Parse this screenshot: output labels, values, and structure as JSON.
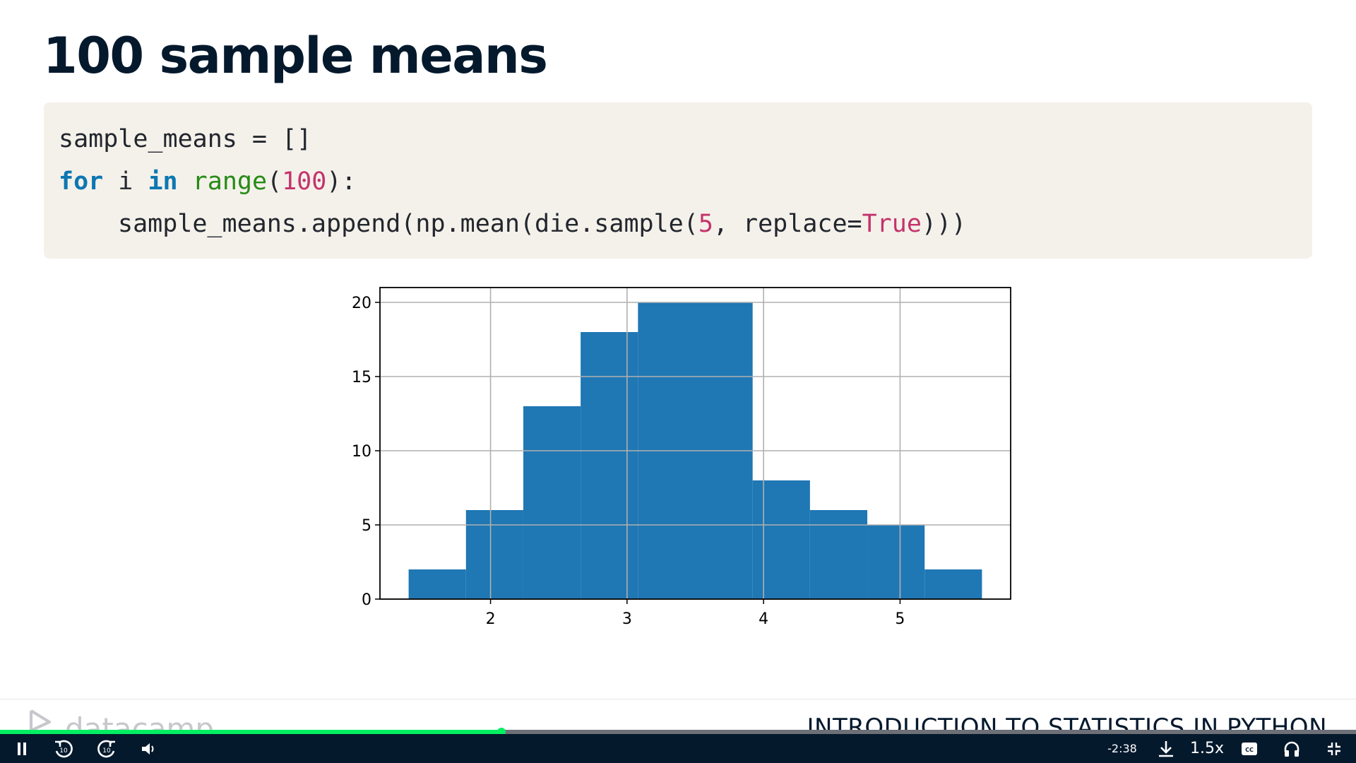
{
  "slide": {
    "title": "100 sample means"
  },
  "code": {
    "line1": "sample_means = []",
    "line2": {
      "kw_for": "for",
      "var": " i ",
      "kw_in": "in",
      "space": " ",
      "fn": "range",
      "open": "(",
      "num": "100",
      "close": "):"
    },
    "line3": {
      "part1": "sample_means.append(np.mean(die.sample(",
      "num": "5",
      "part2": ", replace=",
      "const": "True",
      "part3": ")))"
    }
  },
  "chart_data": {
    "type": "bar",
    "subtype": "histogram",
    "bins": [
      {
        "x0": 1.4,
        "x1": 1.82,
        "count": 2
      },
      {
        "x0": 1.82,
        "x1": 2.24,
        "count": 6
      },
      {
        "x0": 2.24,
        "x1": 2.66,
        "count": 13
      },
      {
        "x0": 2.66,
        "x1": 3.08,
        "count": 18
      },
      {
        "x0": 3.08,
        "x1": 3.5,
        "count": 20
      },
      {
        "x0": 3.5,
        "x1": 3.92,
        "count": 20
      },
      {
        "x0": 3.92,
        "x1": 4.34,
        "count": 8
      },
      {
        "x0": 4.34,
        "x1": 4.76,
        "count": 6
      },
      {
        "x0": 4.76,
        "x1": 5.18,
        "count": 5
      },
      {
        "x0": 5.18,
        "x1": 5.6,
        "count": 2
      }
    ],
    "xlim": [
      1.19,
      5.81
    ],
    "ylim": [
      0,
      21
    ],
    "xticks": [
      2,
      3,
      4,
      5
    ],
    "yticks": [
      0,
      5,
      10,
      15,
      20
    ],
    "grid": true,
    "bar_color": "#1f77b4",
    "title": "",
    "xlabel": "",
    "ylabel": ""
  },
  "footer": {
    "logo_text": "datacamp",
    "course_title": "INTRODUCTION TO STATISTICS IN PYTHON"
  },
  "player": {
    "progress": 0.37,
    "time_remaining": "-2:38",
    "speed": "1.5x",
    "rewind_label": "10",
    "forward_label": "10",
    "cc_label": "CC",
    "accent_color": "#03ef62"
  }
}
